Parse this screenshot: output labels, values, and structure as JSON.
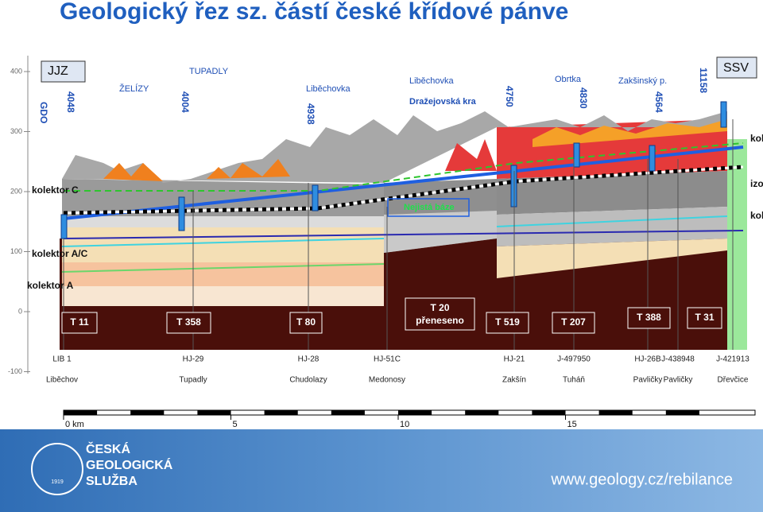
{
  "title": "Geologický řez sz. částí české křídové pánve",
  "section": {
    "left_end": "JJZ",
    "right_end": "SSV",
    "gdo": "GDO",
    "wells": [
      "4048",
      "4004",
      "4938",
      "4750",
      "4830",
      "4564",
      "11158"
    ],
    "places": [
      "ŽELÍZY",
      "TUPADLY",
      "Liběchovka",
      "Liběchovka",
      "Dražejovská kra",
      "Obrtka",
      "Zakšinský p."
    ],
    "uncertain_base": "Nejistá báze",
    "aquifers_left": [
      "kolektor C",
      "kolektor A/C",
      "kolektor A"
    ],
    "aquifers_right": [
      "kole",
      "izola",
      "kole"
    ],
    "temperature_boxes": [
      [
        "T 11"
      ],
      [
        "T 358"
      ],
      [
        "T 80"
      ],
      [
        "T 20",
        "přeneseno"
      ],
      [
        "T 519"
      ],
      [
        "T 207"
      ],
      [
        "T 388"
      ],
      [
        "T 31"
      ]
    ],
    "boreholes": [
      {
        "id": "LIB 1",
        "village": "Liběchov"
      },
      {
        "id": "HJ-29",
        "village": "Tupadly"
      },
      {
        "id": "HJ-28",
        "village": "Chudolazy"
      },
      {
        "id": "HJ-51C",
        "village": "Medonosy"
      },
      {
        "id": "HJ-21",
        "village": "Zakšín"
      },
      {
        "id": "J-497950",
        "village": "Tuháň"
      },
      {
        "id": "HJ-26B",
        "village": "Pavličky"
      },
      {
        "id": "J-438948",
        "village": "Pavličky"
      },
      {
        "id": "J-421913",
        "village": "Dřevčice"
      }
    ],
    "elevation_ticks": [
      400,
      300,
      200,
      100,
      0,
      -100
    ],
    "scale_ticks": [
      {
        "value": 0,
        "label": "0 km"
      },
      5,
      10,
      15
    ]
  },
  "footer": {
    "organization": [
      "ČESKÁ",
      "GEOLOGICKÁ",
      "SLUŽBA"
    ],
    "logo_year": "1919",
    "url": "www.geology.cz/rebilance"
  }
}
